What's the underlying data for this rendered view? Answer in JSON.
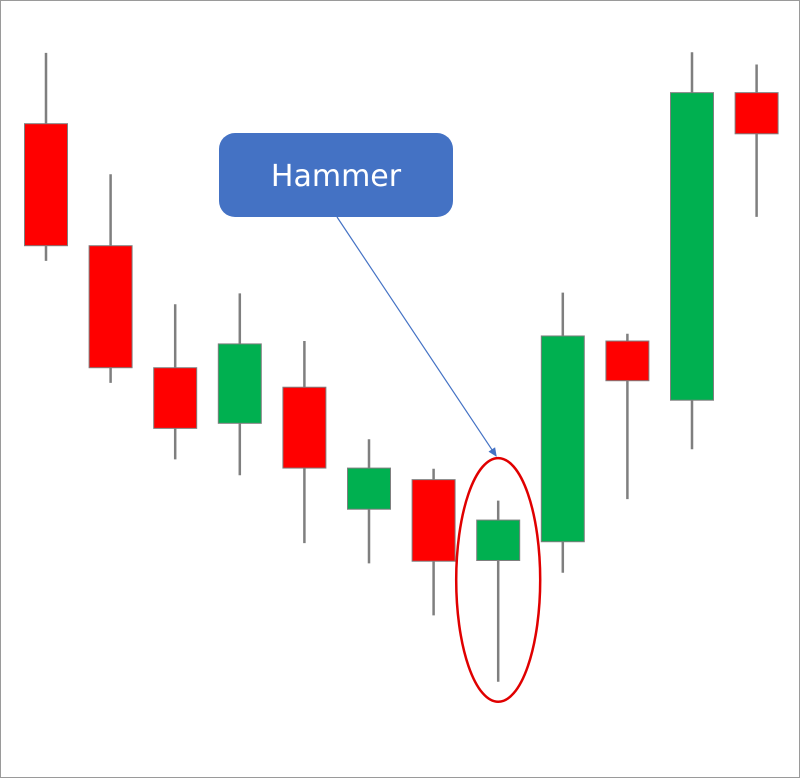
{
  "chart_data": {
    "type": "candlestick",
    "title": "",
    "xlabel": "",
    "ylabel": "",
    "ylim": [
      0,
      100
    ],
    "grid": false,
    "legend": "none",
    "candles": [
      {
        "open": 85.5,
        "close": 68.6,
        "high": 95.3,
        "low": 66.5,
        "direction": "down"
      },
      {
        "open": 68.6,
        "close": 51.7,
        "high": 78.5,
        "low": 49.6,
        "direction": "down"
      },
      {
        "open": 51.7,
        "close": 43.3,
        "high": 60.5,
        "low": 39.0,
        "direction": "down"
      },
      {
        "open": 44.0,
        "close": 55.0,
        "high": 62.0,
        "low": 36.8,
        "direction": "up"
      },
      {
        "open": 49.0,
        "close": 37.8,
        "high": 55.4,
        "low": 27.4,
        "direction": "down"
      },
      {
        "open": 32.1,
        "close": 37.8,
        "high": 41.8,
        "low": 24.6,
        "direction": "up"
      },
      {
        "open": 36.2,
        "close": 24.9,
        "high": 37.7,
        "low": 17.4,
        "direction": "down"
      },
      {
        "open": 25.0,
        "close": 30.6,
        "high": 33.3,
        "low": 8.2,
        "direction": "up",
        "highlight": true
      },
      {
        "open": 27.6,
        "close": 56.1,
        "high": 62.1,
        "low": 23.3,
        "direction": "up"
      },
      {
        "open": 55.4,
        "close": 49.9,
        "high": 56.4,
        "low": 33.5,
        "direction": "down"
      },
      {
        "open": 47.2,
        "close": 89.8,
        "high": 95.4,
        "low": 40.4,
        "direction": "up"
      },
      {
        "open": 89.8,
        "close": 84.1,
        "high": 93.7,
        "low": 72.6,
        "direction": "down"
      }
    ],
    "annotations": [
      {
        "text": "Hammer",
        "target_candle": 7
      }
    ]
  },
  "colors": {
    "up": "#00b050",
    "down": "#ff0000",
    "wick": "#7f7f7f",
    "candle_border": "#7f7f7f",
    "callout_fill": "#4472c4",
    "callout_text": "#ffffff",
    "arrow": "#4472c4",
    "highlight_ring": "#e00000",
    "frame": "#9a9a9a"
  }
}
